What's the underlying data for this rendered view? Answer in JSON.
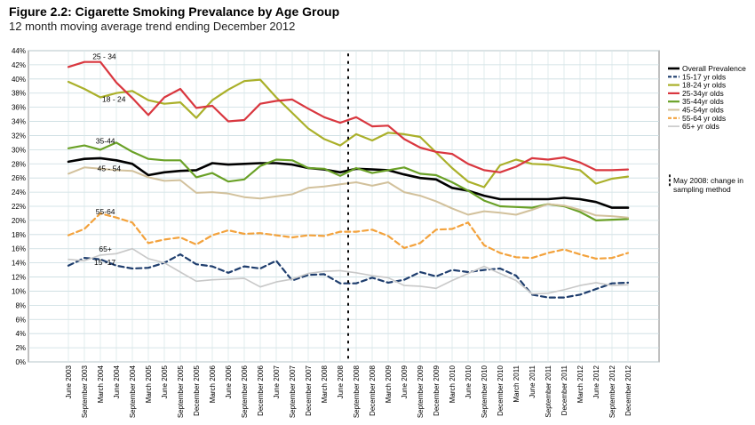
{
  "title": "Figure 2.2: Cigarette Smoking Prevalance by Age Group",
  "subtitle": "12 month moving average trend ending December 2012",
  "chart_data": {
    "type": "line",
    "ylim": [
      0,
      44
    ],
    "y_ticks": [
      "0%",
      "2%",
      "4%",
      "6%",
      "8%",
      "10%",
      "12%",
      "14%",
      "16%",
      "18%",
      "20%",
      "22%",
      "24%",
      "26%",
      "28%",
      "30%",
      "32%",
      "34%",
      "36%",
      "38%",
      "40%",
      "42%",
      "44%"
    ],
    "x_labels": [
      "June 2003",
      "September 2003",
      "March 2004",
      "June 2004",
      "September 2004",
      "March 2005",
      "June 2005",
      "September 2005",
      "December 2005",
      "March 2006",
      "June 2006",
      "September 2006",
      "December 2006",
      "June 2007",
      "September 2007",
      "December 2007",
      "March 2008",
      "June 2008",
      "September 2008",
      "December 2008",
      "March 2009",
      "June 2009",
      "September 2009",
      "December 2009",
      "March 2010",
      "June 2010",
      "September 2010",
      "December 2010",
      "March 2011",
      "June 2011",
      "September 2011",
      "December 2011",
      "March 2012",
      "June 2012",
      "September 2012",
      "December 2012"
    ],
    "grid": true,
    "legend_position": "right",
    "marker_index": 17.5,
    "marker_label": "May 2008: change in sampling method",
    "series": [
      {
        "name": "Overall Prevalence",
        "color": "#000000",
        "dash": "solid",
        "width": 2.6,
        "values": [
          28.3,
          28.7,
          28.8,
          28.5,
          28.0,
          26.4,
          26.8,
          27.0,
          27.1,
          28.1,
          27.9,
          28.0,
          28.1,
          28.1,
          27.9,
          27.4,
          27.2,
          26.8,
          27.3,
          27.2,
          27.1,
          26.5,
          26.0,
          25.8,
          24.6,
          24.2,
          23.5,
          23.0,
          23.0,
          23.0,
          23.0,
          23.2,
          23.0,
          22.6,
          21.8,
          21.8
        ]
      },
      {
        "name": "15-17 yr olds",
        "color": "#1f3e6e",
        "dash": "dashed",
        "width": 2.2,
        "values": [
          13.6,
          14.7,
          14.5,
          13.6,
          13.2,
          13.3,
          14.0,
          15.2,
          13.8,
          13.5,
          12.6,
          13.5,
          13.2,
          14.3,
          11.5,
          12.3,
          12.4,
          11.1,
          11.1,
          11.9,
          11.2,
          11.6,
          12.7,
          12.1,
          13.0,
          12.7,
          13.0,
          13.2,
          12.2,
          9.5,
          9.1,
          9.1,
          9.5,
          10.3,
          11.1,
          11.2
        ]
      },
      {
        "name": "18-24 yr olds",
        "color": "#aab02a",
        "dash": "solid",
        "width": 2.2,
        "values": [
          39.6,
          38.6,
          37.4,
          38.0,
          38.3,
          37.0,
          36.5,
          36.7,
          34.5,
          37.0,
          38.5,
          39.7,
          39.9,
          37.4,
          35.2,
          33.0,
          31.5,
          30.6,
          32.2,
          31.3,
          32.4,
          32.2,
          31.8,
          29.6,
          27.4,
          25.5,
          24.7,
          27.8,
          28.6,
          28.0,
          27.9,
          27.5,
          27.1,
          25.2,
          25.9,
          26.2
        ]
      },
      {
        "name": "25-34yr olds",
        "color": "#d9373f",
        "dash": "solid",
        "width": 2.2,
        "values": [
          41.7,
          42.4,
          42.4,
          39.5,
          37.3,
          34.9,
          37.4,
          38.6,
          35.9,
          36.2,
          34.0,
          34.2,
          36.5,
          36.9,
          37.1,
          35.8,
          34.6,
          33.8,
          34.6,
          33.3,
          33.4,
          31.5,
          30.3,
          29.7,
          29.4,
          28.0,
          27.1,
          26.8,
          27.6,
          28.8,
          28.6,
          28.9,
          28.2,
          27.1,
          27.1,
          27.2
        ]
      },
      {
        "name": "35-44yr olds",
        "color": "#6aa127",
        "dash": "solid",
        "width": 2.2,
        "values": [
          30.2,
          30.6,
          30.0,
          31.0,
          29.7,
          28.7,
          28.5,
          28.5,
          26.1,
          26.7,
          25.5,
          25.8,
          27.7,
          28.6,
          28.5,
          27.4,
          27.3,
          26.3,
          27.4,
          26.7,
          27.1,
          27.5,
          26.6,
          26.4,
          25.4,
          24.2,
          22.8,
          22.0,
          21.9,
          21.8,
          22.3,
          22.0,
          21.2,
          20.0,
          20.1,
          20.2
        ]
      },
      {
        "name": "45-54yr olds",
        "color": "#d2c19c",
        "dash": "solid",
        "width": 2.0,
        "values": [
          26.6,
          27.5,
          27.3,
          27.1,
          27.0,
          26.1,
          25.6,
          25.7,
          23.9,
          24.0,
          23.8,
          23.3,
          23.1,
          23.4,
          23.7,
          24.6,
          24.8,
          25.1,
          25.4,
          24.9,
          25.4,
          24.0,
          23.5,
          22.7,
          21.7,
          20.8,
          21.3,
          21.1,
          20.8,
          21.5,
          22.3,
          22.1,
          21.5,
          20.7,
          20.6,
          20.4
        ]
      },
      {
        "name": "55-64 yr olds",
        "color": "#f3a23c",
        "dash": "dashed",
        "width": 2.2,
        "values": [
          17.9,
          18.8,
          21.0,
          20.4,
          19.7,
          16.8,
          17.3,
          17.6,
          16.6,
          17.9,
          18.6,
          18.1,
          18.2,
          17.9,
          17.6,
          17.9,
          17.8,
          18.4,
          18.4,
          18.7,
          17.8,
          16.1,
          16.8,
          18.7,
          18.8,
          19.7,
          16.5,
          15.4,
          14.8,
          14.7,
          15.4,
          15.9,
          15.2,
          14.6,
          14.7,
          15.4
        ]
      },
      {
        "name": "65+ yr olds",
        "color": "#c8c8c8",
        "dash": "solid",
        "width": 1.6,
        "values": [
          14.5,
          14.3,
          15.1,
          15.3,
          16.0,
          14.6,
          14.0,
          12.7,
          11.4,
          11.6,
          11.7,
          11.8,
          10.6,
          11.3,
          11.7,
          12.5,
          12.8,
          12.9,
          12.6,
          12.2,
          11.9,
          10.8,
          10.7,
          10.4,
          11.5,
          12.5,
          13.5,
          12.5,
          11.5,
          9.6,
          9.7,
          10.2,
          10.8,
          11.2,
          10.8,
          10.9
        ]
      }
    ],
    "annotations": [
      {
        "text": "25 - 34",
        "series": 3,
        "at": 1.4,
        "dy": -3
      },
      {
        "text": "18 - 24",
        "series": 2,
        "at": 2.0,
        "dy": 5
      },
      {
        "text": "35-44",
        "series": 4,
        "at": 1.6,
        "dy": -5
      },
      {
        "text": "45 - 54",
        "series": 5,
        "at": 1.7,
        "dy": 3
      },
      {
        "text": "55-64",
        "series": 6,
        "at": 1.6,
        "dy": -6
      },
      {
        "text": "65+",
        "series": 7,
        "at": 1.8,
        "dy": -5
      },
      {
        "text": "15 -17",
        "series": 1,
        "at": 1.5,
        "dy": 7
      }
    ]
  }
}
